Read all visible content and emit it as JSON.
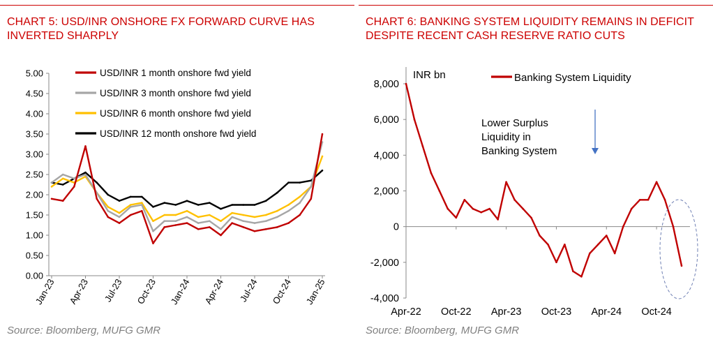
{
  "colors": {
    "accent": "#cc0000",
    "red": "#c00000",
    "grey": "#a6a6a6",
    "yellow": "#ffc000",
    "black": "#000000",
    "arrow": "#4472c4",
    "ellipse": "#6e7fb3"
  },
  "left": {
    "title": "CHART 5: USD/INR ONSHORE FX FORWARD CURVE HAS INVERTED SHARPLY",
    "source": "Source: Bloomberg, MUFG GMR"
  },
  "right": {
    "title": "CHART 6: BANKING SYSTEM LIQUIDITY REMAINS IN DEFICIT DESPITE RECENT CASH RESERVE RATIO CUTS",
    "source": "Source: Bloomberg, MUFG GMR"
  },
  "chart_data": [
    {
      "type": "line",
      "ylim": [
        0,
        5
      ],
      "y_ticks": [
        "0.00",
        "0.50",
        "1.00",
        "1.50",
        "2.00",
        "2.50",
        "3.00",
        "3.50",
        "4.00",
        "4.50",
        "5.00"
      ],
      "x_ticks": [
        "Jan-23",
        "Apr-23",
        "Jul-23",
        "Oct-23",
        "Jan-24",
        "Apr-24",
        "Jul-24",
        "Oct-24",
        "Jan-25"
      ],
      "legend_position": "top-left",
      "series": [
        {
          "name": "USD/INR 1 month onshore fwd yield",
          "color": "#c00000",
          "x": [
            "Jan-23",
            "Feb-23",
            "Mar-23",
            "Apr-23",
            "May-23",
            "Jun-23",
            "Jul-23",
            "Aug-23",
            "Sep-23",
            "Oct-23",
            "Nov-23",
            "Dec-23",
            "Jan-24",
            "Feb-24",
            "Mar-24",
            "Apr-24",
            "May-24",
            "Jun-24",
            "Jul-24",
            "Aug-24",
            "Sep-24",
            "Oct-24",
            "Nov-24",
            "Dec-24",
            "Jan-25"
          ],
          "values": [
            1.9,
            1.85,
            2.2,
            3.2,
            1.9,
            1.45,
            1.3,
            1.5,
            1.6,
            0.8,
            1.2,
            1.25,
            1.3,
            1.15,
            1.2,
            1.0,
            1.3,
            1.2,
            1.1,
            1.15,
            1.2,
            1.3,
            1.5,
            1.9,
            3.5
          ]
        },
        {
          "name": "USD/INR 3 month onshore fwd yield",
          "color": "#a6a6a6",
          "x": [
            "Jan-23",
            "Feb-23",
            "Mar-23",
            "Apr-23",
            "May-23",
            "Jun-23",
            "Jul-23",
            "Aug-23",
            "Sep-23",
            "Oct-23",
            "Nov-23",
            "Dec-23",
            "Jan-24",
            "Feb-24",
            "Mar-24",
            "Apr-24",
            "May-24",
            "Jun-24",
            "Jul-24",
            "Aug-24",
            "Sep-24",
            "Oct-24",
            "Nov-24",
            "Dec-24",
            "Jan-25"
          ],
          "values": [
            2.3,
            2.5,
            2.4,
            2.5,
            2.05,
            1.6,
            1.45,
            1.7,
            1.75,
            1.1,
            1.35,
            1.35,
            1.45,
            1.3,
            1.35,
            1.15,
            1.45,
            1.35,
            1.3,
            1.35,
            1.45,
            1.6,
            1.8,
            2.2,
            3.3
          ]
        },
        {
          "name": "USD/INR 6 month onshore fwd yield",
          "color": "#ffc000",
          "x": [
            "Jan-23",
            "Feb-23",
            "Mar-23",
            "Apr-23",
            "May-23",
            "Jun-23",
            "Jul-23",
            "Aug-23",
            "Sep-23",
            "Oct-23",
            "Nov-23",
            "Dec-23",
            "Jan-24",
            "Feb-24",
            "Mar-24",
            "Apr-24",
            "May-24",
            "Jun-24",
            "Jul-24",
            "Aug-24",
            "Sep-24",
            "Oct-24",
            "Nov-24",
            "Dec-24",
            "Jan-25"
          ],
          "values": [
            2.2,
            2.4,
            2.3,
            2.45,
            2.05,
            1.7,
            1.55,
            1.75,
            1.8,
            1.35,
            1.5,
            1.5,
            1.6,
            1.45,
            1.5,
            1.35,
            1.55,
            1.5,
            1.45,
            1.5,
            1.6,
            1.75,
            1.95,
            2.2,
            2.95
          ]
        },
        {
          "name": "USD/INR 12 month onshore fwd yield",
          "color": "#000000",
          "x": [
            "Jan-23",
            "Feb-23",
            "Mar-23",
            "Apr-23",
            "May-23",
            "Jun-23",
            "Jul-23",
            "Aug-23",
            "Sep-23",
            "Oct-23",
            "Nov-23",
            "Dec-23",
            "Jan-24",
            "Feb-24",
            "Mar-24",
            "Apr-24",
            "May-24",
            "Jun-24",
            "Jul-24",
            "Aug-24",
            "Sep-24",
            "Oct-24",
            "Nov-24",
            "Dec-24",
            "Jan-25"
          ],
          "values": [
            2.3,
            2.25,
            2.4,
            2.55,
            2.3,
            2.0,
            1.85,
            1.95,
            1.95,
            1.7,
            1.8,
            1.75,
            1.85,
            1.75,
            1.8,
            1.65,
            1.75,
            1.75,
            1.75,
            1.85,
            2.05,
            2.3,
            2.3,
            2.35,
            2.6
          ]
        }
      ]
    },
    {
      "type": "line",
      "ylim": [
        -4000,
        8000
      ],
      "ylabel": "INR bn",
      "y_ticks": [
        "8,000",
        "6,000",
        "4,000",
        "2,000",
        "0",
        "-2,000",
        "-4,000"
      ],
      "x_ticks": [
        "Apr-22",
        "Oct-22",
        "Apr-23",
        "Oct-23",
        "Apr-24",
        "Oct-24"
      ],
      "legend_position": "top",
      "annotation": "Lower Surplus Liquidity in Banking System",
      "series": [
        {
          "name": "Banking System Liquidity",
          "color": "#c00000",
          "x": [
            "Apr-22",
            "May-22",
            "Jun-22",
            "Jul-22",
            "Aug-22",
            "Sep-22",
            "Oct-22",
            "Nov-22",
            "Dec-22",
            "Jan-23",
            "Feb-23",
            "Mar-23",
            "Apr-23",
            "May-23",
            "Jun-23",
            "Jul-23",
            "Aug-23",
            "Sep-23",
            "Oct-23",
            "Nov-23",
            "Dec-23",
            "Jan-24",
            "Feb-24",
            "Mar-24",
            "Apr-24",
            "May-24",
            "Jun-24",
            "Jul-24",
            "Aug-24",
            "Sep-24",
            "Oct-24",
            "Nov-24",
            "Dec-24",
            "Jan-25"
          ],
          "values": [
            8000,
            6000,
            4500,
            3000,
            2000,
            1000,
            500,
            1500,
            1000,
            800,
            1000,
            400,
            2500,
            1500,
            1000,
            500,
            -500,
            -1000,
            -2000,
            -1000,
            -2500,
            -2800,
            -1500,
            -1000,
            -500,
            -1500,
            0,
            1000,
            1500,
            1500,
            2500,
            1500,
            0,
            -2200
          ]
        }
      ]
    }
  ]
}
